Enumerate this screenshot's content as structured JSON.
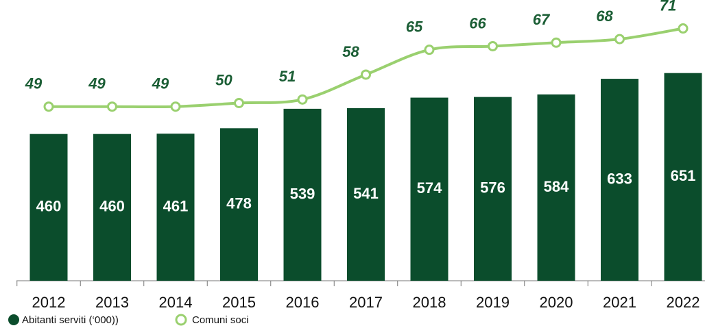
{
  "chart_data": {
    "type": "bar",
    "categories": [
      "2012",
      "2013",
      "2014",
      "2015",
      "2016",
      "2017",
      "2018",
      "2019",
      "2020",
      "2021",
      "2022"
    ],
    "series": [
      {
        "name": "Abitanti serviti (‘000))",
        "type": "bar",
        "color": "#0b4d2c",
        "values": [
          460,
          460,
          461,
          478,
          539,
          541,
          574,
          576,
          584,
          633,
          651
        ]
      },
      {
        "name": "Comuni soci",
        "type": "line",
        "axis": "y2",
        "color": "#9ad06f",
        "values": [
          49,
          49,
          49,
          50,
          51,
          58,
          65,
          66,
          67,
          68,
          71
        ]
      }
    ],
    "ylim": [
      0,
      880
    ],
    "y2lim": [
      0,
      79
    ],
    "grid": false
  }
}
